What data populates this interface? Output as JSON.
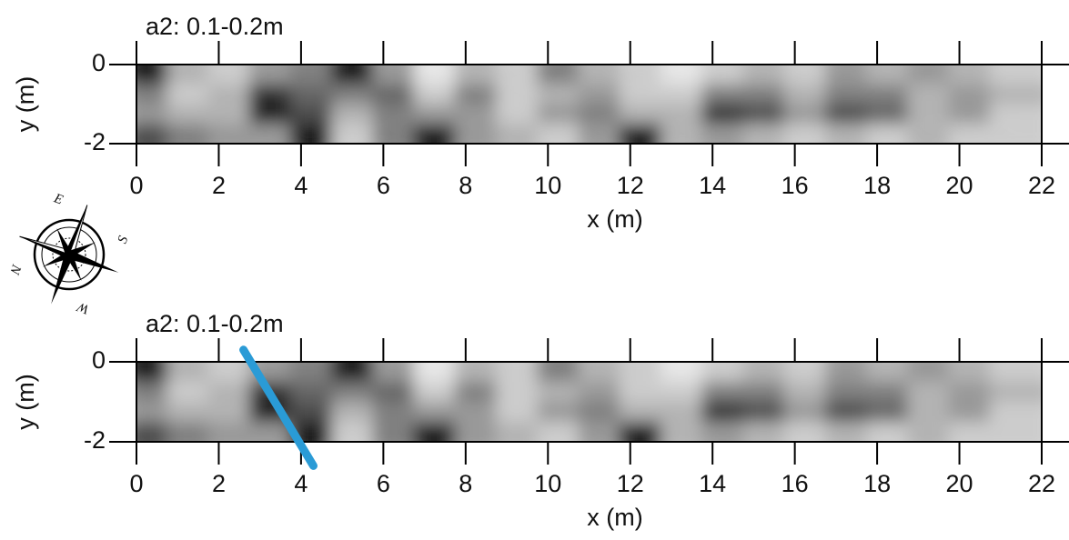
{
  "chart_data": [
    {
      "type": "heatmap",
      "title": "a2: 0.1-0.2m",
      "x_label": "x (m)",
      "y_label": "y (m)",
      "xlim": [
        0,
        22
      ],
      "ylim": [
        -2,
        0
      ],
      "xticks": [
        0,
        2,
        4,
        6,
        8,
        10,
        12,
        14,
        16,
        18,
        20,
        22
      ],
      "yticks": [
        0,
        -2
      ],
      "xbins": [
        0,
        1,
        2,
        3,
        4,
        5,
        6,
        7,
        8,
        9,
        10,
        11,
        12,
        13,
        14,
        15,
        16,
        17,
        18,
        19,
        20,
        21,
        22
      ],
      "ybins": [
        0,
        -0.5,
        -1,
        -1.5,
        -2
      ],
      "z": [
        [
          0.1,
          0.7,
          0.8,
          0.6,
          0.5,
          0.1,
          0.6,
          0.9,
          0.7,
          0.8,
          0.5,
          0.7,
          0.8,
          0.9,
          0.8,
          0.7,
          0.8,
          0.6,
          0.7,
          0.6,
          0.7,
          0.8
        ],
        [
          0.5,
          0.8,
          0.7,
          0.2,
          0.4,
          0.5,
          0.4,
          0.8,
          0.5,
          0.8,
          0.7,
          0.6,
          0.8,
          0.8,
          0.5,
          0.5,
          0.7,
          0.5,
          0.5,
          0.7,
          0.6,
          0.7
        ],
        [
          0.6,
          0.7,
          0.7,
          0.1,
          0.3,
          0.7,
          0.5,
          0.6,
          0.6,
          0.8,
          0.6,
          0.5,
          0.7,
          0.7,
          0.2,
          0.3,
          0.6,
          0.3,
          0.4,
          0.7,
          0.6,
          0.8
        ],
        [
          0.3,
          0.5,
          0.6,
          0.6,
          0.1,
          0.8,
          0.5,
          0.1,
          0.6,
          0.7,
          0.8,
          0.6,
          0.1,
          0.7,
          0.6,
          0.7,
          0.8,
          0.7,
          0.8,
          0.7,
          0.8,
          0.8
        ]
      ]
    },
    {
      "type": "heatmap",
      "title": "a2: 0.1-0.2m",
      "x_label": "x (m)",
      "y_label": "y (m)",
      "xlim": [
        0,
        22
      ],
      "ylim": [
        -2,
        0
      ],
      "xticks": [
        0,
        2,
        4,
        6,
        8,
        10,
        12,
        14,
        16,
        18,
        20,
        22
      ],
      "yticks": [
        0,
        -2
      ],
      "xbins": [
        0,
        1,
        2,
        3,
        4,
        5,
        6,
        7,
        8,
        9,
        10,
        11,
        12,
        13,
        14,
        15,
        16,
        17,
        18,
        19,
        20,
        21,
        22
      ],
      "ybins": [
        0,
        -0.5,
        -1,
        -1.5,
        -2
      ],
      "z": [
        [
          0.1,
          0.7,
          0.8,
          0.6,
          0.5,
          0.1,
          0.6,
          0.9,
          0.7,
          0.8,
          0.5,
          0.7,
          0.8,
          0.9,
          0.8,
          0.7,
          0.8,
          0.6,
          0.7,
          0.6,
          0.7,
          0.8
        ],
        [
          0.5,
          0.8,
          0.7,
          0.2,
          0.4,
          0.5,
          0.4,
          0.8,
          0.5,
          0.8,
          0.7,
          0.6,
          0.8,
          0.8,
          0.5,
          0.5,
          0.7,
          0.5,
          0.5,
          0.7,
          0.6,
          0.7
        ],
        [
          0.6,
          0.7,
          0.7,
          0.1,
          0.3,
          0.7,
          0.5,
          0.6,
          0.6,
          0.8,
          0.6,
          0.5,
          0.7,
          0.7,
          0.2,
          0.3,
          0.6,
          0.3,
          0.4,
          0.7,
          0.6,
          0.8
        ],
        [
          0.3,
          0.5,
          0.6,
          0.6,
          0.1,
          0.8,
          0.5,
          0.1,
          0.6,
          0.7,
          0.8,
          0.6,
          0.1,
          0.7,
          0.6,
          0.7,
          0.8,
          0.7,
          0.8,
          0.7,
          0.8,
          0.8
        ]
      ],
      "annotation_line": {
        "x": [
          2.6,
          4.3
        ],
        "y": [
          0.3,
          -2.6
        ],
        "color": "#2a9bd6"
      }
    }
  ],
  "compass": {
    "labels": [
      "E",
      "S",
      "W",
      "N"
    ]
  }
}
